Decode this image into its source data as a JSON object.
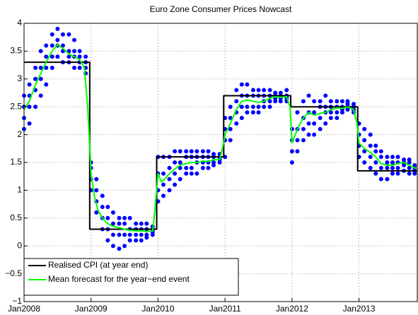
{
  "chart_data": {
    "type": "line",
    "title": "Euro Zone Consumer Prices Nowcast",
    "xlim": [
      2008,
      2013.87
    ],
    "ylim": [
      -1,
      4
    ],
    "xticks": [
      {
        "value": 2008,
        "label": "Jan2008"
      },
      {
        "value": 2009,
        "label": "Jan2009"
      },
      {
        "value": 2010,
        "label": "Jan2010"
      },
      {
        "value": 2011,
        "label": "Jan2011"
      },
      {
        "value": 2012,
        "label": "Jan2012"
      },
      {
        "value": 2013,
        "label": "Jan2013"
      }
    ],
    "yticks": [
      {
        "value": -1,
        "label": "−1"
      },
      {
        "value": -0.5,
        "label": "−0.5"
      },
      0,
      0.5,
      1,
      1.5,
      2,
      2.5,
      3,
      3.5,
      4
    ],
    "grid": true,
    "legend": "lower left",
    "scatter": {
      "color": "#0000ff",
      "x": [
        2008.0,
        2008.08,
        2008.17,
        2008.25,
        2008.33,
        2008.42,
        2008.5,
        2008.58,
        2008.67,
        2008.75,
        2008.83,
        2008.92,
        2009.0,
        2009.08,
        2009.17,
        2009.25,
        2009.33,
        2009.42,
        2009.5,
        2009.58,
        2009.67,
        2009.75,
        2009.83,
        2009.92,
        2010.0,
        2010.08,
        2010.17,
        2010.25,
        2010.33,
        2010.42,
        2010.5,
        2010.58,
        2010.67,
        2010.75,
        2010.83,
        2010.92,
        2011.0,
        2011.08,
        2011.17,
        2011.25,
        2011.33,
        2011.42,
        2011.5,
        2011.58,
        2011.67,
        2011.75,
        2011.83,
        2011.92,
        2012.0,
        2012.08,
        2012.17,
        2012.25,
        2012.33,
        2012.42,
        2012.5,
        2012.58,
        2012.67,
        2012.75,
        2012.83,
        2012.92,
        2013.0,
        2013.08,
        2013.17,
        2013.25,
        2013.33,
        2013.42,
        2013.5,
        2013.58,
        2013.67,
        2013.75,
        2013.83
      ],
      "values": [
        [
          2.1,
          2.3,
          2.5,
          2.7
        ],
        [
          2.2,
          2.5,
          2.7,
          2.9
        ],
        [
          2.5,
          2.8,
          3.0,
          3.2
        ],
        [
          2.7,
          3.0,
          3.2,
          3.5
        ],
        [
          2.9,
          3.2,
          3.4,
          3.6
        ],
        [
          3.2,
          3.4,
          3.6,
          3.8
        ],
        [
          3.4,
          3.6,
          3.7,
          3.9
        ],
        [
          3.3,
          3.5,
          3.6,
          3.8
        ],
        [
          3.3,
          3.4,
          3.5,
          3.8
        ],
        [
          3.2,
          3.4,
          3.5,
          3.7
        ],
        [
          3.2,
          3.3,
          3.4,
          3.5
        ],
        [
          3.1,
          3.2,
          3.3,
          3.4
        ],
        [
          1.0,
          1.2,
          1.4,
          1.5
        ],
        [
          0.6,
          0.8,
          1.0,
          1.2
        ],
        [
          0.3,
          0.5,
          0.7,
          0.9
        ],
        [
          0.1,
          0.3,
          0.5,
          0.7
        ],
        [
          0.0,
          0.2,
          0.4,
          0.6
        ],
        [
          -0.05,
          0.2,
          0.4,
          0.5
        ],
        [
          0.0,
          0.2,
          0.4,
          0.5
        ],
        [
          0.1,
          0.2,
          0.3,
          0.5
        ],
        [
          0.1,
          0.2,
          0.3,
          0.4
        ],
        [
          0.1,
          0.2,
          0.3,
          0.4
        ],
        [
          0.15,
          0.2,
          0.3,
          0.4
        ],
        [
          0.2,
          0.25,
          0.3,
          0.35
        ],
        [
          0.8,
          1.0,
          1.3,
          1.6
        ],
        [
          0.9,
          1.1,
          1.3,
          1.6
        ],
        [
          1.0,
          1.2,
          1.4,
          1.6
        ],
        [
          1.1,
          1.3,
          1.5,
          1.7
        ],
        [
          1.2,
          1.4,
          1.5,
          1.7
        ],
        [
          1.3,
          1.4,
          1.6,
          1.7
        ],
        [
          1.3,
          1.4,
          1.6,
          1.7
        ],
        [
          1.3,
          1.5,
          1.6,
          1.7
        ],
        [
          1.4,
          1.5,
          1.6,
          1.7
        ],
        [
          1.4,
          1.5,
          1.6,
          1.7
        ],
        [
          1.45,
          1.5,
          1.6,
          1.65
        ],
        [
          1.5,
          1.55,
          1.6,
          1.65
        ],
        [
          1.6,
          1.9,
          2.1,
          2.3
        ],
        [
          1.9,
          2.1,
          2.3,
          2.5
        ],
        [
          2.2,
          2.4,
          2.6,
          2.8
        ],
        [
          2.3,
          2.5,
          2.7,
          2.9
        ],
        [
          2.4,
          2.5,
          2.7,
          2.9
        ],
        [
          2.4,
          2.5,
          2.7,
          2.8
        ],
        [
          2.4,
          2.5,
          2.7,
          2.8
        ],
        [
          2.5,
          2.6,
          2.7,
          2.8
        ],
        [
          2.5,
          2.6,
          2.7,
          2.8
        ],
        [
          2.6,
          2.65,
          2.7,
          2.75
        ],
        [
          2.6,
          2.65,
          2.7,
          2.75
        ],
        [
          2.6,
          2.65,
          2.7,
          2.8
        ],
        [
          1.5,
          1.7,
          1.9,
          2.1
        ],
        [
          1.7,
          1.9,
          2.1,
          2.4
        ],
        [
          1.9,
          2.1,
          2.3,
          2.6
        ],
        [
          2.0,
          2.2,
          2.4,
          2.7
        ],
        [
          2.0,
          2.2,
          2.4,
          2.6
        ],
        [
          2.1,
          2.3,
          2.5,
          2.6
        ],
        [
          2.2,
          2.4,
          2.5,
          2.7
        ],
        [
          2.3,
          2.4,
          2.5,
          2.6
        ],
        [
          2.3,
          2.4,
          2.5,
          2.6
        ],
        [
          2.4,
          2.45,
          2.5,
          2.6
        ],
        [
          2.45,
          2.5,
          2.55,
          2.6
        ],
        [
          2.4,
          2.45,
          2.5,
          2.55
        ],
        [
          1.6,
          1.8,
          2.0,
          2.2
        ],
        [
          1.5,
          1.7,
          1.9,
          2.1
        ],
        [
          1.4,
          1.6,
          1.8,
          2.0
        ],
        [
          1.3,
          1.5,
          1.7,
          1.8
        ],
        [
          1.2,
          1.4,
          1.6,
          1.7
        ],
        [
          1.2,
          1.4,
          1.5,
          1.6
        ],
        [
          1.3,
          1.4,
          1.5,
          1.6
        ],
        [
          1.3,
          1.4,
          1.5,
          1.6
        ],
        [
          1.35,
          1.45,
          1.5,
          1.55
        ],
        [
          1.3,
          1.4,
          1.5,
          1.55
        ],
        [
          1.3,
          1.35,
          1.4,
          1.45
        ]
      ]
    },
    "series": [
      {
        "name": "Realised CPI (at year end)",
        "color": "#000000",
        "x": [
          2008,
          2008.98,
          2008.98,
          2009.98,
          2009.98,
          2010.98,
          2010.98,
          2011.98,
          2011.98,
          2012.98,
          2012.98,
          2013.87
        ],
        "values": [
          3.3,
          3.3,
          0.3,
          0.3,
          1.6,
          1.6,
          2.7,
          2.7,
          2.5,
          2.5,
          1.35,
          1.35
        ]
      },
      {
        "name": "Mean forecast for the year−end event",
        "color": "#00ff00",
        "x": [
          2008.0,
          2008.08,
          2008.17,
          2008.25,
          2008.33,
          2008.42,
          2008.5,
          2008.58,
          2008.67,
          2008.75,
          2008.83,
          2008.9,
          2008.95,
          2009.0,
          2009.05,
          2009.1,
          2009.17,
          2009.25,
          2009.33,
          2009.42,
          2009.5,
          2009.58,
          2009.67,
          2009.75,
          2009.83,
          2009.92,
          2009.95,
          2010.0,
          2010.05,
          2010.1,
          2010.17,
          2010.25,
          2010.33,
          2010.42,
          2010.5,
          2010.58,
          2010.67,
          2010.75,
          2010.83,
          2010.92,
          2010.97,
          2011.0,
          2011.08,
          2011.17,
          2011.25,
          2011.33,
          2011.42,
          2011.5,
          2011.58,
          2011.67,
          2011.75,
          2011.83,
          2011.92,
          2011.97,
          2012.0,
          2012.05,
          2012.1,
          2012.17,
          2012.25,
          2012.33,
          2012.42,
          2012.5,
          2012.58,
          2012.67,
          2012.75,
          2012.83,
          2012.92,
          2012.97,
          2013.0,
          2013.08,
          2013.17,
          2013.25,
          2013.33,
          2013.42,
          2013.5,
          2013.58,
          2013.67,
          2013.75,
          2013.83,
          2013.87
        ],
        "values": [
          2.45,
          2.6,
          2.9,
          3.1,
          3.3,
          3.5,
          3.62,
          3.55,
          3.45,
          3.4,
          3.35,
          3.2,
          2.5,
          1.3,
          0.9,
          0.65,
          0.5,
          0.4,
          0.35,
          0.33,
          0.3,
          0.28,
          0.27,
          0.27,
          0.26,
          0.27,
          0.6,
          1.3,
          1.15,
          1.2,
          1.3,
          1.38,
          1.45,
          1.48,
          1.5,
          1.5,
          1.52,
          1.52,
          1.55,
          1.55,
          1.8,
          2.0,
          2.2,
          2.45,
          2.6,
          2.62,
          2.6,
          2.58,
          2.6,
          2.65,
          2.68,
          2.67,
          2.68,
          2.5,
          1.85,
          2.0,
          2.15,
          2.3,
          2.4,
          2.35,
          2.38,
          2.4,
          2.45,
          2.48,
          2.47,
          2.5,
          2.45,
          2.2,
          1.85,
          1.75,
          1.68,
          1.6,
          1.48,
          1.45,
          1.45,
          1.48,
          1.5,
          1.45,
          1.4,
          1.4
        ]
      }
    ]
  }
}
